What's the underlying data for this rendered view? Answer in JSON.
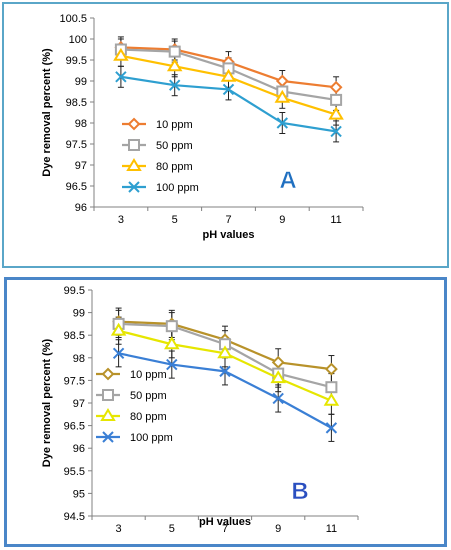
{
  "chart_data": [
    {
      "type": "line",
      "panel_label": "A",
      "panel_label_color": "#1f6fc0",
      "xlabel": "pH values",
      "ylabel": "Dye removal percent (%)",
      "categories": [
        "3",
        "5",
        "7",
        "9",
        "11"
      ],
      "x": [
        3,
        5,
        7,
        9,
        11
      ],
      "ylim": [
        96,
        100.5
      ],
      "yticks": [
        "96",
        "96.5",
        "97",
        "97.5",
        "98",
        "98.5",
        "99",
        "99.5",
        "100",
        "100.5"
      ],
      "grid": false,
      "legend": "lower-left",
      "error_bars": true,
      "error": 0.25,
      "series": [
        {
          "name": "10 ppm",
          "values": [
            99.8,
            99.75,
            99.45,
            99.0,
            98.85
          ],
          "color": "#ed7d31",
          "marker": "diamond"
        },
        {
          "name": "50 ppm",
          "values": [
            99.75,
            99.7,
            99.3,
            98.75,
            98.55
          ],
          "color": "#a5a5a5",
          "marker": "square"
        },
        {
          "name": "80 ppm",
          "values": [
            99.6,
            99.35,
            99.1,
            98.6,
            98.2
          ],
          "color": "#ffc000",
          "marker": "triangle"
        },
        {
          "name": "100 ppm",
          "values": [
            99.1,
            98.9,
            98.8,
            98.0,
            97.8
          ],
          "color": "#2e9fd0",
          "marker": "x"
        }
      ]
    },
    {
      "type": "line",
      "panel_label": "B",
      "panel_label_color": "#2a4fc0",
      "xlabel": "pH values",
      "ylabel": "Dye removal percent (%)",
      "categories": [
        "3",
        "5",
        "7",
        "9",
        "11"
      ],
      "x": [
        3,
        5,
        7,
        9,
        11
      ],
      "ylim": [
        94.5,
        99.5
      ],
      "yticks": [
        "94.5",
        "95",
        "95.5",
        "96",
        "96.5",
        "97",
        "97.5",
        "98",
        "98.5",
        "99",
        "99.5"
      ],
      "grid": false,
      "legend": "lower-left",
      "error_bars": true,
      "error": 0.3,
      "series": [
        {
          "name": "10 ppm",
          "values": [
            98.8,
            98.75,
            98.4,
            97.9,
            97.75
          ],
          "color": "#b8922a",
          "marker": "diamond"
        },
        {
          "name": "50 ppm",
          "values": [
            98.75,
            98.7,
            98.3,
            97.65,
            97.35
          ],
          "color": "#a5a5a5",
          "marker": "square"
        },
        {
          "name": "80 ppm",
          "values": [
            98.6,
            98.3,
            98.1,
            97.55,
            97.05
          ],
          "color": "#e6e600",
          "marker": "triangle"
        },
        {
          "name": "100 ppm",
          "values": [
            98.1,
            97.85,
            97.7,
            97.1,
            96.45
          ],
          "color": "#3a7fd5",
          "marker": "x"
        }
      ]
    }
  ]
}
